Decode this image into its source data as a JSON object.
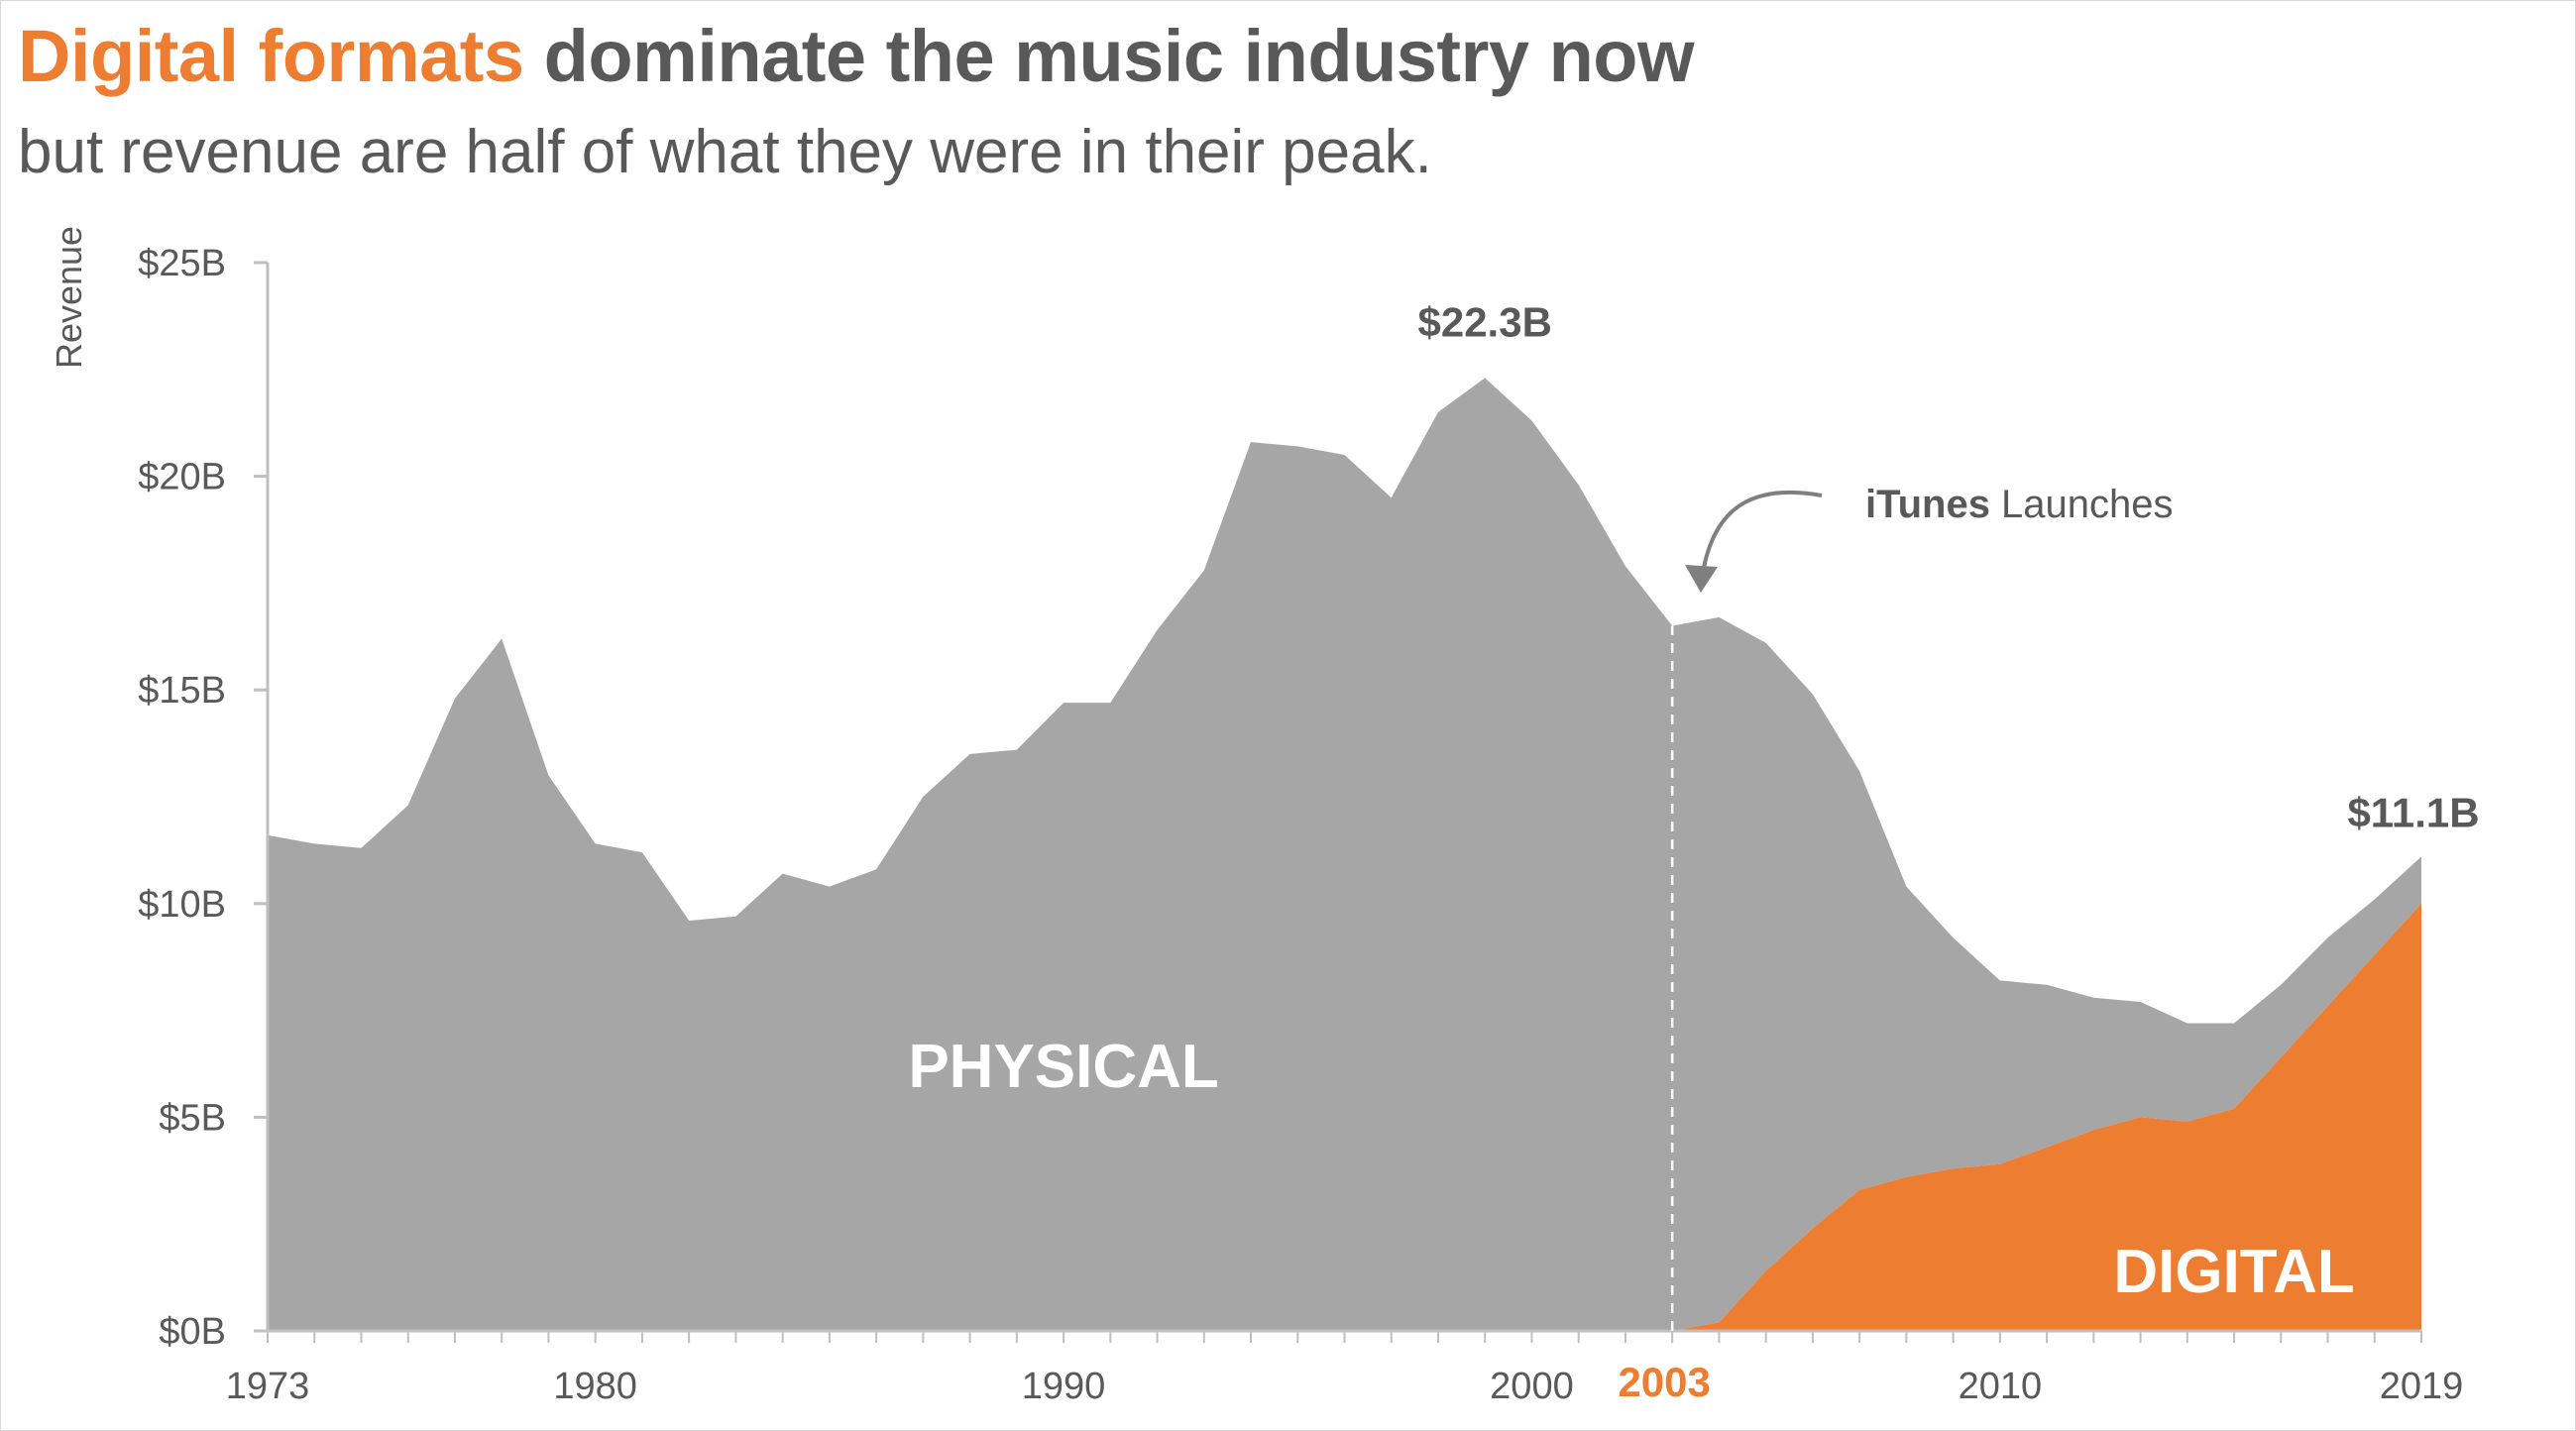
{
  "title": {
    "highlight": "Digital formats",
    "rest": " dominate the music industry now"
  },
  "subtitle": "but revenue are half of what they were in their peak.",
  "colors": {
    "physical": "#a6a6a6",
    "digital": "#ed7d31",
    "text": "#595959",
    "axis": "#bfbfbf"
  },
  "chart_data": {
    "type": "area",
    "stacked": true,
    "ylabel": "Revenue",
    "ylim": [
      0,
      25
    ],
    "xlim": [
      1973,
      2019
    ],
    "y_ticks": [
      {
        "value": 0,
        "label": "$0B"
      },
      {
        "value": 5,
        "label": "$5B"
      },
      {
        "value": 10,
        "label": "$10B"
      },
      {
        "value": 15,
        "label": "$15B"
      },
      {
        "value": 20,
        "label": "$20B"
      },
      {
        "value": 25,
        "label": "$25B"
      }
    ],
    "x_ticks": [
      {
        "value": 1973,
        "label": "1973"
      },
      {
        "value": 1980,
        "label": "1980"
      },
      {
        "value": 1990,
        "label": "1990"
      },
      {
        "value": 2000,
        "label": "2000"
      },
      {
        "value": 2010,
        "label": "2010"
      },
      {
        "value": 2019,
        "label": "2019"
      }
    ],
    "x": [
      1973,
      1974,
      1975,
      1976,
      1977,
      1978,
      1979,
      1980,
      1981,
      1982,
      1983,
      1984,
      1985,
      1986,
      1987,
      1988,
      1989,
      1990,
      1991,
      1992,
      1993,
      1994,
      1995,
      1996,
      1997,
      1998,
      1999,
      2000,
      2001,
      2002,
      2003,
      2004,
      2005,
      2006,
      2007,
      2008,
      2009,
      2010,
      2011,
      2012,
      2013,
      2014,
      2015,
      2016,
      2017,
      2018,
      2019
    ],
    "series": [
      {
        "name": "PHYSICAL",
        "values": [
          11.6,
          11.4,
          11.3,
          12.3,
          14.8,
          16.2,
          13.0,
          11.4,
          11.2,
          9.6,
          9.7,
          10.7,
          10.4,
          10.8,
          12.5,
          13.5,
          13.6,
          14.7,
          14.7,
          16.4,
          17.8,
          20.8,
          20.7,
          20.5,
          19.5,
          21.5,
          22.3,
          21.3,
          19.8,
          17.9,
          16.5,
          16.5,
          14.7,
          12.5,
          9.8,
          6.8,
          5.4,
          4.3,
          3.8,
          3.1,
          2.7,
          2.3,
          2.0,
          1.7,
          1.6,
          1.3,
          1.1
        ]
      },
      {
        "name": "DIGITAL",
        "values": [
          0,
          0,
          0,
          0,
          0,
          0,
          0,
          0,
          0,
          0,
          0,
          0,
          0,
          0,
          0,
          0,
          0,
          0,
          0,
          0,
          0,
          0,
          0,
          0,
          0,
          0,
          0,
          0,
          0,
          0,
          0,
          0.2,
          1.4,
          2.4,
          3.3,
          3.6,
          3.8,
          3.9,
          4.3,
          4.7,
          5.0,
          4.9,
          5.2,
          6.4,
          7.6,
          8.8,
          10.0
        ]
      }
    ],
    "annotations": {
      "peak_label": "$22.3B",
      "end_label": "$11.1B",
      "event_year": 2003,
      "event_year_label": "2003",
      "event_bold": "iTunes",
      "event_text": " Launches"
    }
  }
}
